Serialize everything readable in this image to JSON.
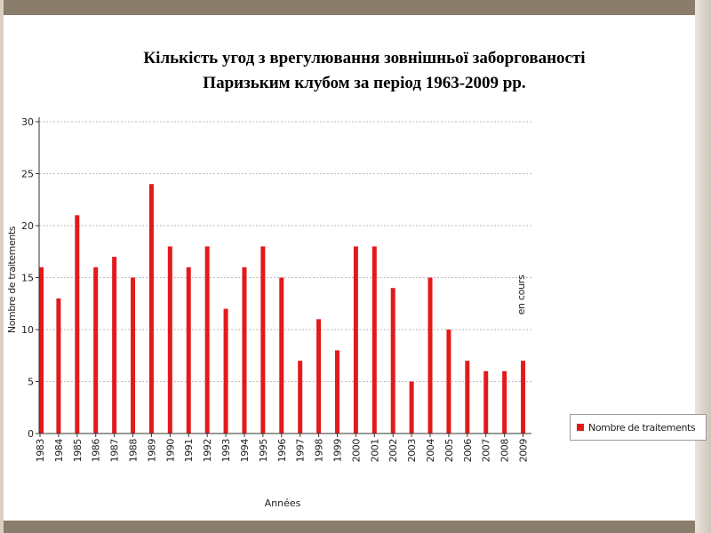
{
  "title_line1": "Кількість угод з врегулювання зовнішньої заборгованості",
  "title_line2": "Паризьким клубом за період 1963-2009 рр.",
  "chart_data": {
    "type": "bar",
    "categories": [
      "1983",
      "1984",
      "1985",
      "1986",
      "1987",
      "1988",
      "1989",
      "1990",
      "1991",
      "1992",
      "1993",
      "1994",
      "1995",
      "1996",
      "1997",
      "1998",
      "1999",
      "2000",
      "2001",
      "2002",
      "2003",
      "2004",
      "2005",
      "2006",
      "2007",
      "2008",
      "2009"
    ],
    "series": [
      {
        "name": "Nombre de traitements",
        "values": [
          16,
          13,
          21,
          16,
          17,
          15,
          24,
          18,
          16,
          18,
          12,
          16,
          18,
          15,
          7,
          11,
          8,
          18,
          18,
          14,
          5,
          15,
          10,
          7,
          6,
          6,
          7
        ]
      }
    ],
    "xlabel": "Années",
    "ylabel": "Nombre de traitements",
    "ylim": [
      0,
      30
    ],
    "yticks": [
      0,
      5,
      10,
      15,
      20,
      25,
      30
    ],
    "grid": true,
    "legend_position": "right",
    "annotation": "en cours",
    "bar_color": "#e31a1c"
  }
}
